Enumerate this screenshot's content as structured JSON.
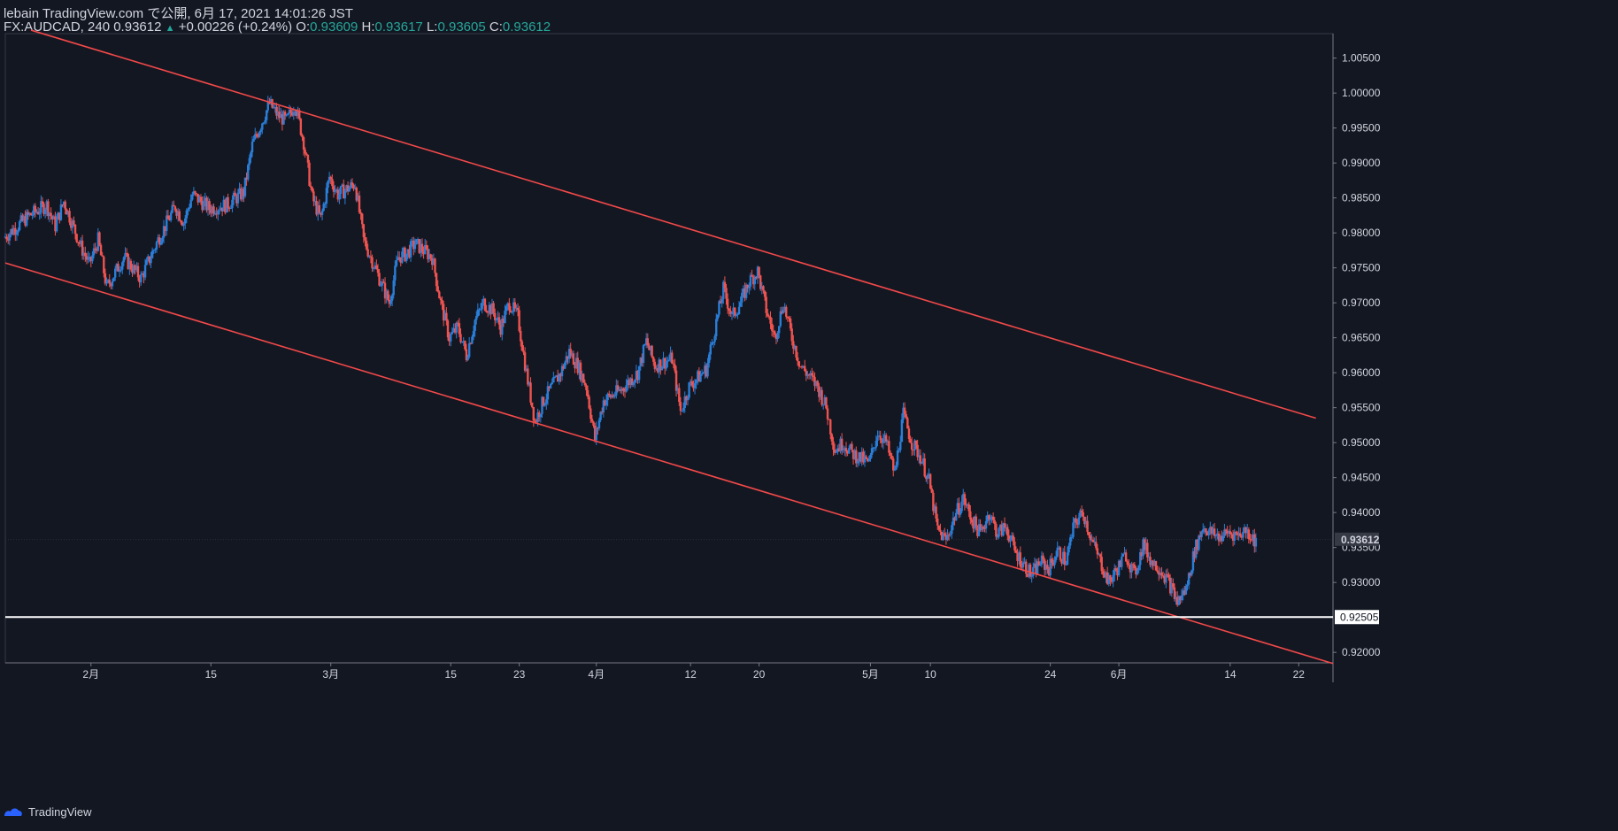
{
  "header": {
    "publish_line": "lebain TradingView.com で公開, 6月 17, 2021 14:01:26 JST",
    "symbol": "FX:AUDCAD, 240",
    "last": "0.93612",
    "change_arrow": "▲",
    "change": "+0.00226 (+0.24%)",
    "o_label": "O:",
    "o_val": "0.93609",
    "h_label": "H:",
    "h_val": "0.93617",
    "l_label": "L:",
    "l_val": "0.93605",
    "c_label": "C:",
    "c_val": "0.93612"
  },
  "footer": {
    "brand": "TradingView",
    "logo_icon": "tradingview-logo-icon"
  },
  "colors": {
    "background": "#131722",
    "up": "#2a7ed8",
    "down": "#ef5350",
    "trendline": "#f24949",
    "hline": "#ffffff",
    "axis": "#787b86",
    "text": "#d1d4dc"
  },
  "chart_data": {
    "type": "candlestick",
    "symbol": "FX:AUDCAD",
    "interval": "240",
    "ylim": [
      0.9185,
      1.0085
    ],
    "y_ticks": [
      "1.00500",
      "1.00000",
      "0.99500",
      "0.99000",
      "0.98500",
      "0.98000",
      "0.97500",
      "0.97000",
      "0.96500",
      "0.96000",
      "0.95500",
      "0.95000",
      "0.94500",
      "0.94000",
      "0.93500",
      "0.93000",
      "0.92000"
    ],
    "x_ticks": [
      {
        "label": "2月",
        "date": "2021-02-01"
      },
      {
        "label": "15",
        "date": "2021-02-15"
      },
      {
        "label": "3月",
        "date": "2021-03-01"
      },
      {
        "label": "15",
        "date": "2021-03-15"
      },
      {
        "label": "23",
        "date": "2021-03-23"
      },
      {
        "label": "4月",
        "date": "2021-04-01"
      },
      {
        "label": "12",
        "date": "2021-04-12"
      },
      {
        "label": "20",
        "date": "2021-04-20"
      },
      {
        "label": "5月",
        "date": "2021-05-03"
      },
      {
        "label": "10",
        "date": "2021-05-10"
      },
      {
        "label": "24",
        "date": "2021-05-24"
      },
      {
        "label": "6月",
        "date": "2021-06-01"
      },
      {
        "label": "14",
        "date": "2021-06-14"
      },
      {
        "label": "22",
        "date": "2021-06-22"
      }
    ],
    "date_range": [
      "2021-01-22",
      "2021-06-26"
    ],
    "price_path": [
      {
        "date": "2021-01-22",
        "close": 0.9793
      },
      {
        "date": "2021-01-25",
        "close": 0.9825
      },
      {
        "date": "2021-01-27",
        "close": 0.984
      },
      {
        "date": "2021-01-28",
        "close": 0.981
      },
      {
        "date": "2021-01-29",
        "close": 0.9845
      },
      {
        "date": "2021-01-31",
        "close": 0.978
      },
      {
        "date": "2021-02-01",
        "close": 0.9755
      },
      {
        "date": "2021-02-02",
        "close": 0.979
      },
      {
        "date": "2021-02-03",
        "close": 0.9722
      },
      {
        "date": "2021-02-05",
        "close": 0.9765
      },
      {
        "date": "2021-02-07",
        "close": 0.9735
      },
      {
        "date": "2021-02-09",
        "close": 0.979
      },
      {
        "date": "2021-02-11",
        "close": 0.9838
      },
      {
        "date": "2021-02-12",
        "close": 0.9815
      },
      {
        "date": "2021-02-13",
        "close": 0.9855
      },
      {
        "date": "2021-02-15",
        "close": 0.9835
      },
      {
        "date": "2021-02-17",
        "close": 0.984
      },
      {
        "date": "2021-02-19",
        "close": 0.9858
      },
      {
        "date": "2021-02-20",
        "close": 0.9925
      },
      {
        "date": "2021-02-22",
        "close": 0.9985
      },
      {
        "date": "2021-02-23",
        "close": 0.9968
      },
      {
        "date": "2021-02-24",
        "close": 0.996
      },
      {
        "date": "2021-02-25",
        "close": 0.9985
      },
      {
        "date": "2021-02-26",
        "close": 0.993
      },
      {
        "date": "2021-02-27",
        "close": 0.985
      },
      {
        "date": "2021-02-28",
        "close": 0.982
      },
      {
        "date": "2021-03-01",
        "close": 0.988
      },
      {
        "date": "2021-03-02",
        "close": 0.9855
      },
      {
        "date": "2021-03-04",
        "close": 0.987
      },
      {
        "date": "2021-03-05",
        "close": 0.979
      },
      {
        "date": "2021-03-07",
        "close": 0.973
      },
      {
        "date": "2021-03-08",
        "close": 0.97
      },
      {
        "date": "2021-03-09",
        "close": 0.9765
      },
      {
        "date": "2021-03-10",
        "close": 0.977
      },
      {
        "date": "2021-03-11",
        "close": 0.9785
      },
      {
        "date": "2021-03-13",
        "close": 0.9765
      },
      {
        "date": "2021-03-14",
        "close": 0.97
      },
      {
        "date": "2021-03-15",
        "close": 0.965
      },
      {
        "date": "2021-03-16",
        "close": 0.9665
      },
      {
        "date": "2021-03-17",
        "close": 0.9625
      },
      {
        "date": "2021-03-18",
        "close": 0.9675
      },
      {
        "date": "2021-03-19",
        "close": 0.97
      },
      {
        "date": "2021-03-20",
        "close": 0.969
      },
      {
        "date": "2021-03-21",
        "close": 0.9665
      },
      {
        "date": "2021-03-22",
        "close": 0.97
      },
      {
        "date": "2021-03-23",
        "close": 0.968
      },
      {
        "date": "2021-03-24",
        "close": 0.96
      },
      {
        "date": "2021-03-25",
        "close": 0.953
      },
      {
        "date": "2021-03-26",
        "close": 0.956
      },
      {
        "date": "2021-03-28",
        "close": 0.96
      },
      {
        "date": "2021-03-29",
        "close": 0.963
      },
      {
        "date": "2021-03-30",
        "close": 0.961
      },
      {
        "date": "2021-03-31",
        "close": 0.958
      },
      {
        "date": "2021-04-01",
        "close": 0.9505
      },
      {
        "date": "2021-04-02",
        "close": 0.956
      },
      {
        "date": "2021-04-04",
        "close": 0.9575
      },
      {
        "date": "2021-04-06",
        "close": 0.96
      },
      {
        "date": "2021-04-07",
        "close": 0.9645
      },
      {
        "date": "2021-04-08",
        "close": 0.961
      },
      {
        "date": "2021-04-10",
        "close": 0.962
      },
      {
        "date": "2021-04-11",
        "close": 0.9545
      },
      {
        "date": "2021-04-12",
        "close": 0.958
      },
      {
        "date": "2021-04-14",
        "close": 0.9605
      },
      {
        "date": "2021-04-16",
        "close": 0.972
      },
      {
        "date": "2021-04-17",
        "close": 0.968
      },
      {
        "date": "2021-04-18",
        "close": 0.97
      },
      {
        "date": "2021-04-19",
        "close": 0.973
      },
      {
        "date": "2021-04-20",
        "close": 0.9745
      },
      {
        "date": "2021-04-21",
        "close": 0.969
      },
      {
        "date": "2021-04-22",
        "close": 0.965
      },
      {
        "date": "2021-04-23",
        "close": 0.97
      },
      {
        "date": "2021-04-24",
        "close": 0.965
      },
      {
        "date": "2021-04-25",
        "close": 0.961
      },
      {
        "date": "2021-04-27",
        "close": 0.958
      },
      {
        "date": "2021-04-28",
        "close": 0.955
      },
      {
        "date": "2021-04-29",
        "close": 0.949
      },
      {
        "date": "2021-04-30",
        "close": 0.95
      },
      {
        "date": "2021-05-01",
        "close": 0.9485
      },
      {
        "date": "2021-05-03",
        "close": 0.947
      },
      {
        "date": "2021-05-04",
        "close": 0.9515
      },
      {
        "date": "2021-05-05",
        "close": 0.95
      },
      {
        "date": "2021-05-06",
        "close": 0.9455
      },
      {
        "date": "2021-05-07",
        "close": 0.954
      },
      {
        "date": "2021-05-08",
        "close": 0.95
      },
      {
        "date": "2021-05-09",
        "close": 0.948
      },
      {
        "date": "2021-05-10",
        "close": 0.9445
      },
      {
        "date": "2021-05-11",
        "close": 0.9375
      },
      {
        "date": "2021-05-12",
        "close": 0.936
      },
      {
        "date": "2021-05-13",
        "close": 0.9395
      },
      {
        "date": "2021-05-14",
        "close": 0.942
      },
      {
        "date": "2021-05-15",
        "close": 0.939
      },
      {
        "date": "2021-05-16",
        "close": 0.937
      },
      {
        "date": "2021-05-17",
        "close": 0.94
      },
      {
        "date": "2021-05-18",
        "close": 0.937
      },
      {
        "date": "2021-05-19",
        "close": 0.938
      },
      {
        "date": "2021-05-20",
        "close": 0.9345
      },
      {
        "date": "2021-05-22",
        "close": 0.931
      },
      {
        "date": "2021-05-23",
        "close": 0.933
      },
      {
        "date": "2021-05-24",
        "close": 0.932
      },
      {
        "date": "2021-05-25",
        "close": 0.9345
      },
      {
        "date": "2021-05-26",
        "close": 0.933
      },
      {
        "date": "2021-05-27",
        "close": 0.9385
      },
      {
        "date": "2021-05-28",
        "close": 0.94
      },
      {
        "date": "2021-05-29",
        "close": 0.936
      },
      {
        "date": "2021-05-30",
        "close": 0.933
      },
      {
        "date": "2021-05-31",
        "close": 0.93
      },
      {
        "date": "2021-06-01",
        "close": 0.932
      },
      {
        "date": "2021-06-02",
        "close": 0.934
      },
      {
        "date": "2021-06-03",
        "close": 0.931
      },
      {
        "date": "2021-06-04",
        "close": 0.9355
      },
      {
        "date": "2021-06-05",
        "close": 0.933
      },
      {
        "date": "2021-06-06",
        "close": 0.932
      },
      {
        "date": "2021-06-07",
        "close": 0.93
      },
      {
        "date": "2021-06-08",
        "close": 0.9272
      },
      {
        "date": "2021-06-09",
        "close": 0.929
      },
      {
        "date": "2021-06-10",
        "close": 0.9345
      },
      {
        "date": "2021-06-11",
        "close": 0.938
      },
      {
        "date": "2021-06-12",
        "close": 0.937
      },
      {
        "date": "2021-06-13",
        "close": 0.9365
      },
      {
        "date": "2021-06-14",
        "close": 0.9372
      },
      {
        "date": "2021-06-15",
        "close": 0.9368
      },
      {
        "date": "2021-06-16",
        "close": 0.9375
      },
      {
        "date": "2021-06-17",
        "close": 0.9361
      }
    ],
    "trendlines": [
      {
        "name": "upper-channel",
        "color": "#f24949",
        "points": [
          {
            "date": "2021-01-25",
            "price": 1.009
          },
          {
            "date": "2021-06-24",
            "price": 0.9535
          }
        ]
      },
      {
        "name": "lower-channel",
        "color": "#f24949",
        "points": [
          {
            "date": "2021-01-22",
            "price": 0.9757
          },
          {
            "date": "2021-06-26",
            "price": 0.9184
          }
        ]
      }
    ],
    "horizontal_line": {
      "price": 0.92505,
      "label": "0.92505",
      "color": "#ffffff"
    },
    "last_price_label": "0.93612",
    "extra_axis_label": "0.93500"
  }
}
